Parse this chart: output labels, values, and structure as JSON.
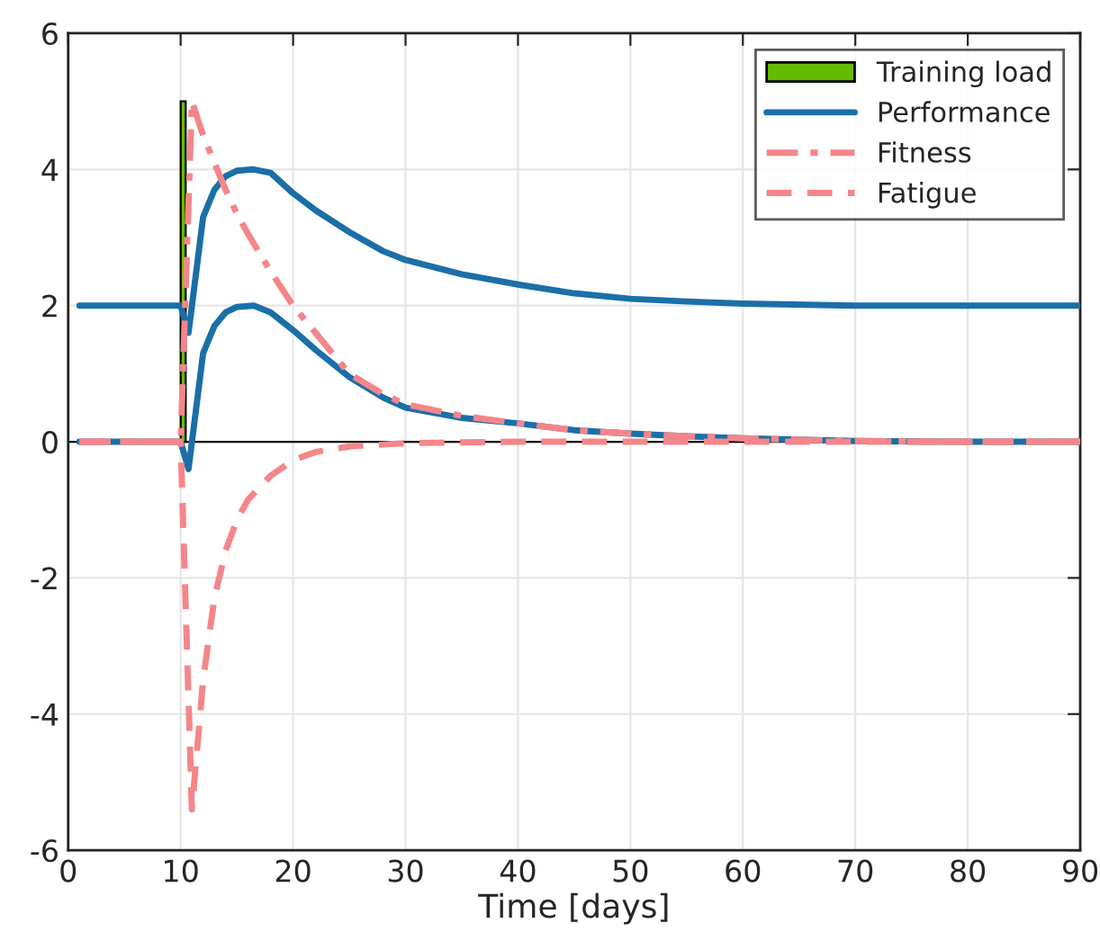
{
  "chart_data": {
    "type": "line",
    "xlabel": "Time [days]",
    "xlim": [
      0,
      90
    ],
    "xticks": [
      0,
      10,
      20,
      30,
      40,
      50,
      60,
      70,
      80,
      90
    ],
    "ylim": [
      -6,
      6
    ],
    "yticks": [
      -6,
      -4,
      -2,
      0,
      2,
      4,
      6
    ],
    "grid": true,
    "legend": "top right",
    "ref_lines": [
      {
        "axis": "y",
        "value": 0,
        "color": "#000000",
        "line_style": "solid"
      }
    ],
    "series": [
      {
        "name": "Training load",
        "type": "bar",
        "color": "#66bb00",
        "x": [
          10
        ],
        "values": [
          5
        ]
      },
      {
        "name": "Performance",
        "line_style": "solid",
        "color": "#1a6fa8",
        "x": [
          1,
          5,
          10,
          10.7,
          12,
          13,
          14,
          15,
          16.5,
          18,
          20,
          22,
          25,
          28,
          30,
          35,
          40,
          45,
          50,
          55,
          60,
          70,
          80,
          90
        ],
        "values": [
          0,
          0,
          0,
          -0.4,
          1.3,
          1.7,
          1.9,
          1.98,
          2.0,
          1.9,
          1.64,
          1.35,
          0.95,
          0.65,
          0.5,
          0.35,
          0.27,
          0.17,
          0.12,
          0.08,
          0.05,
          0.01,
          0,
          0
        ]
      },
      {
        "line_style": "solid",
        "color": "#1a6fa8",
        "x": [
          1,
          5,
          10,
          10.7,
          12,
          13,
          14,
          15,
          16.5,
          18,
          20,
          22,
          25,
          28,
          30,
          35,
          40,
          45,
          50,
          55,
          60,
          70,
          80,
          90
        ],
        "values": [
          2,
          2,
          2,
          1.6,
          3.3,
          3.7,
          3.9,
          3.98,
          4.0,
          3.95,
          3.65,
          3.4,
          3.08,
          2.8,
          2.67,
          2.46,
          2.31,
          2.18,
          2.1,
          2.06,
          2.03,
          2.0,
          2,
          2
        ]
      },
      {
        "name": "Fitness",
        "line_style": "dashdot",
        "color": "#f4868a",
        "x": [
          1,
          10,
          11,
          12,
          13,
          14,
          15,
          16,
          18,
          20,
          22,
          25,
          28,
          30,
          35,
          40,
          45,
          50,
          55,
          60,
          70,
          80,
          90
        ],
        "values": [
          0,
          0,
          5,
          4.5,
          4.1,
          3.7,
          3.35,
          3.05,
          2.5,
          2.0,
          1.6,
          1.0,
          0.7,
          0.55,
          0.38,
          0.27,
          0.17,
          0.12,
          0.08,
          0.05,
          0.01,
          0,
          0
        ]
      },
      {
        "name": "Fatigue",
        "line_style": "dashed",
        "color": "#f4868a",
        "x": [
          1,
          10,
          11,
          12,
          13,
          14,
          15,
          16,
          18,
          20,
          22,
          25,
          30,
          40,
          90
        ],
        "values": [
          0,
          0,
          -5.4,
          -3.5,
          -2.3,
          -1.6,
          -1.15,
          -0.85,
          -0.5,
          -0.27,
          -0.15,
          -0.07,
          -0.02,
          0,
          0
        ]
      }
    ]
  }
}
